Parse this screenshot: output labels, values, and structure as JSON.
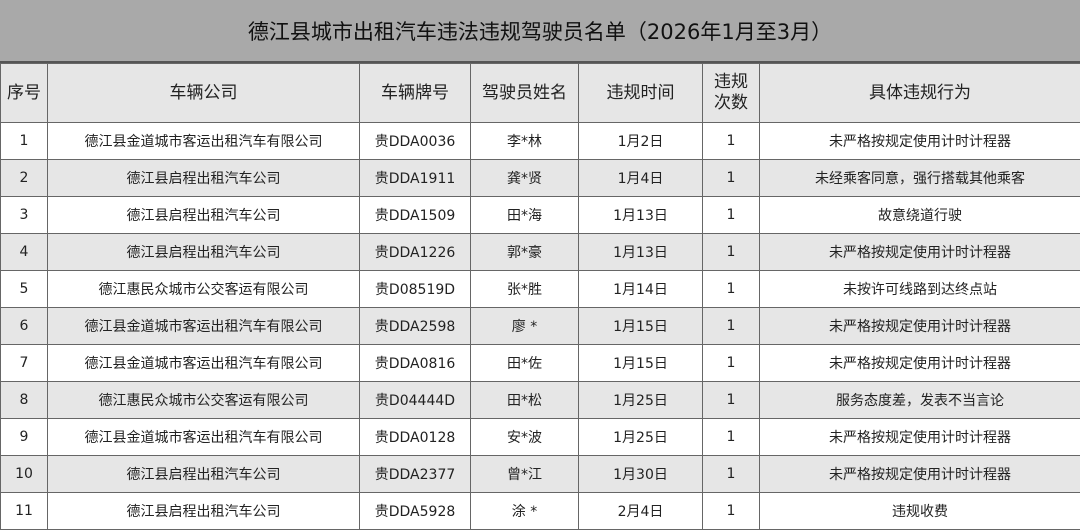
{
  "title": "德江县城市出租汽车违法违规驾驶员名单（2026年1月至3月）",
  "columns": [
    "序号",
    "车辆公司",
    "车辆牌号",
    "驾驶员姓名",
    "违规时间",
    "违规次数",
    "具体违规行为"
  ],
  "rows": [
    [
      "1",
      "德江县金道城市客运出租汽车有限公司",
      "贵DDA0036",
      "李*林",
      "1月2日",
      "1",
      "未严格按规定使用计时计程器"
    ],
    [
      "2",
      "德江县启程出租汽车公司",
      "贵DDA1911",
      "龚*贤",
      "1月4日",
      "1",
      "未经乘客同意，强行搭载其他乘客"
    ],
    [
      "3",
      "德江县启程出租汽车公司",
      "贵DDA1509",
      "田*海",
      "1月13日",
      "1",
      "故意绕道行驶"
    ],
    [
      "4",
      "德江县启程出租汽车公司",
      "贵DDA1226",
      "郭*豪",
      "1月13日",
      "1",
      "未严格按规定使用计时计程器"
    ],
    [
      "5",
      "德江惠民众城市公交客运有限公司",
      "贵D08519D",
      "张*胜",
      "1月14日",
      "1",
      "未按许可线路到达终点站"
    ],
    [
      "6",
      "德江县金道城市客运出租汽车有限公司",
      "贵DDA2598",
      "廖 *",
      "1月15日",
      "1",
      "未严格按规定使用计时计程器"
    ],
    [
      "7",
      "德江县金道城市客运出租汽车有限公司",
      "贵DDA0816",
      "田*佐",
      "1月15日",
      "1",
      "未严格按规定使用计时计程器"
    ],
    [
      "8",
      "德江惠民众城市公交客运有限公司",
      "贵D04444D",
      "田*松",
      "1月25日",
      "1",
      "服务态度差，发表不当言论"
    ],
    [
      "9",
      "德江县金道城市客运出租汽车有限公司",
      "贵DDA0128",
      "安*波",
      "1月25日",
      "1",
      "未严格按规定使用计时计程器"
    ],
    [
      "10",
      "德江县启程出租汽车公司",
      "贵DDA2377",
      "曾*江",
      "1月30日",
      "1",
      "未严格按规定使用计时计程器"
    ],
    [
      "11",
      "德江县启程出租汽车公司",
      "贵DDA5928",
      "涂 *",
      "2月4日",
      "1",
      "违规收费"
    ]
  ]
}
